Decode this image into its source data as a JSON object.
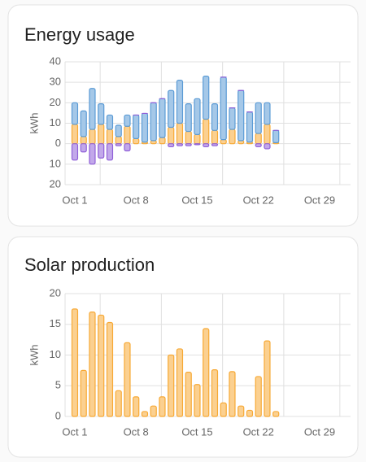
{
  "chart_data": [
    {
      "type": "bar",
      "title": "Energy usage",
      "ylabel": "kWh",
      "stacked": true,
      "grid": true,
      "categories": [
        "Oct 1",
        null,
        null,
        null,
        null,
        null,
        null,
        "Oct 8",
        null,
        null,
        null,
        null,
        null,
        null,
        "Oct 15",
        null,
        null,
        null,
        null,
        null,
        null,
        "Oct 22",
        null,
        null,
        null,
        null,
        null,
        null,
        "Oct 29",
        null,
        null
      ],
      "series": [
        {
          "color": "#f7a935",
          "values": [
            9.5,
            3.5,
            7,
            9.5,
            7,
            3.5,
            8.5,
            2.5,
            0.8,
            1.5,
            3,
            8,
            10,
            6,
            4.5,
            12,
            6.5,
            2,
            7,
            1.5,
            0.8,
            5,
            9.5,
            0.5,
            null,
            null,
            null,
            null,
            null,
            null,
            null
          ]
        },
        {
          "color": "#5b9bd5",
          "values": [
            10.5,
            12.5,
            20,
            10,
            7,
            5.5,
            5.5,
            11.5,
            14,
            18.5,
            19,
            18,
            21,
            13.5,
            17.5,
            21,
            13,
            30.5,
            10.5,
            24.5,
            14.7,
            15,
            10.5,
            6,
            null,
            null,
            null,
            null,
            null,
            null,
            null
          ]
        },
        {
          "color": "#9060d8",
          "values": [
            -8,
            -4,
            -10,
            -7,
            -8,
            -1,
            -3.5,
            0,
            0,
            0,
            0,
            -1.5,
            -1,
            -1,
            -0.5,
            -1.5,
            -1,
            0,
            0,
            0,
            0,
            -1.5,
            -2.5,
            0,
            null,
            null,
            null,
            null,
            null,
            null,
            null
          ]
        }
      ],
      "ylim": [
        -20,
        40
      ],
      "yticks": [
        40,
        30,
        20,
        10,
        0,
        {
          "value": -10,
          "label": "10"
        },
        {
          "value": -20,
          "label": "20"
        }
      ]
    },
    {
      "type": "bar",
      "title": "Solar production",
      "ylabel": "kWh",
      "stacked": true,
      "grid": true,
      "categories": [
        "Oct 1",
        null,
        null,
        null,
        null,
        null,
        null,
        "Oct 8",
        null,
        null,
        null,
        null,
        null,
        null,
        "Oct 15",
        null,
        null,
        null,
        null,
        null,
        null,
        "Oct 22",
        null,
        null,
        null,
        null,
        null,
        null,
        "Oct 29",
        null,
        null
      ],
      "series": [
        {
          "color": "#f7a935",
          "values": [
            17.5,
            7.5,
            17,
            16.5,
            15.3,
            4.2,
            12,
            3.2,
            0.8,
            1.7,
            3.2,
            10,
            11,
            7.2,
            5.2,
            14.3,
            7.6,
            2.2,
            7.3,
            1.7,
            1,
            6.5,
            12.3,
            0.8,
            null,
            null,
            null,
            null,
            null,
            null,
            null
          ]
        }
      ],
      "ylim": [
        0,
        20
      ],
      "yticks": [
        20,
        15,
        10,
        5,
        0
      ]
    }
  ]
}
